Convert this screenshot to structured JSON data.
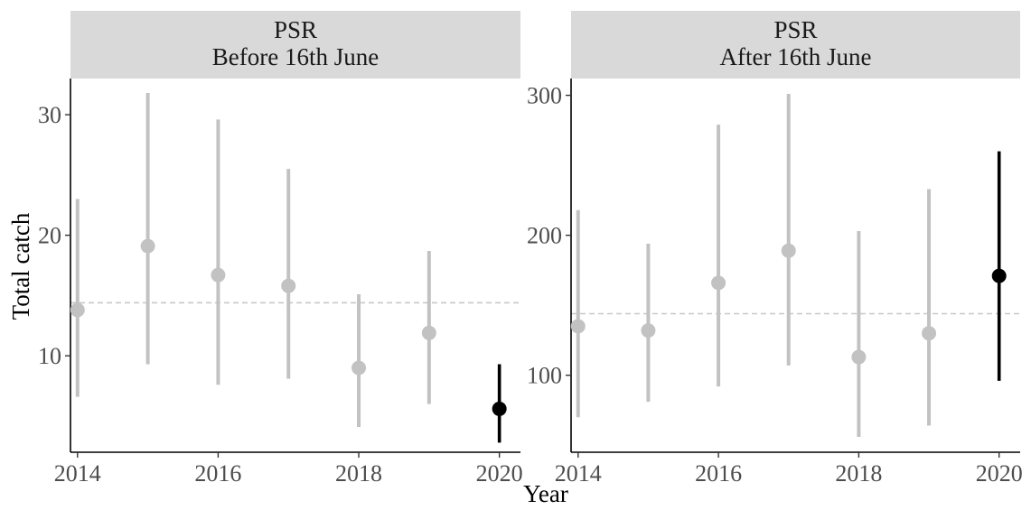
{
  "figure": {
    "ylabel": "Total catch",
    "xlabel": "Year"
  },
  "colors": {
    "past": "#c2c2c2",
    "current": "#000000",
    "strip": "#d9d9d9",
    "reference_line": "#c8c8c8"
  },
  "chart_data": [
    {
      "type": "scatter",
      "panel_title": [
        "PSR",
        "Before 16th June"
      ],
      "ylabel": "Total catch",
      "xlabel": "Year",
      "xlim": [
        2013.9,
        2020.3
      ],
      "ylim": [
        2,
        33
      ],
      "xticks": [
        2014,
        2016,
        2018,
        2020
      ],
      "yticks": [
        10,
        20,
        30
      ],
      "reference_line": 14.4,
      "grid": false,
      "points": [
        {
          "x": 2014,
          "y": 13.8,
          "low": 6.6,
          "high": 23.0,
          "highlight": false
        },
        {
          "x": 2015,
          "y": 19.1,
          "low": 9.3,
          "high": 31.8,
          "highlight": false
        },
        {
          "x": 2016,
          "y": 16.7,
          "low": 7.6,
          "high": 29.6,
          "highlight": false
        },
        {
          "x": 2017,
          "y": 15.8,
          "low": 8.1,
          "high": 25.5,
          "highlight": false
        },
        {
          "x": 2018,
          "y": 9.0,
          "low": 4.1,
          "high": 15.1,
          "highlight": false
        },
        {
          "x": 2019,
          "y": 11.9,
          "low": 6.0,
          "high": 18.7,
          "highlight": false
        },
        {
          "x": 2020,
          "y": 5.6,
          "low": 2.8,
          "high": 9.3,
          "highlight": true
        }
      ]
    },
    {
      "type": "scatter",
      "panel_title": [
        "PSR",
        "After 16th June"
      ],
      "ylabel": "Total catch",
      "xlabel": "Year",
      "xlim": [
        2013.9,
        2020.3
      ],
      "ylim": [
        45,
        312
      ],
      "xticks": [
        2014,
        2016,
        2018,
        2020
      ],
      "yticks": [
        100,
        200,
        300
      ],
      "reference_line": 144,
      "grid": false,
      "points": [
        {
          "x": 2014,
          "y": 135,
          "low": 70,
          "high": 218,
          "highlight": false
        },
        {
          "x": 2015,
          "y": 132,
          "low": 81,
          "high": 194,
          "highlight": false
        },
        {
          "x": 2016,
          "y": 166,
          "low": 92,
          "high": 279,
          "highlight": false
        },
        {
          "x": 2017,
          "y": 189,
          "low": 107,
          "high": 301,
          "highlight": false
        },
        {
          "x": 2018,
          "y": 113,
          "low": 56,
          "high": 203,
          "highlight": false
        },
        {
          "x": 2019,
          "y": 130,
          "low": 64,
          "high": 233,
          "highlight": false
        },
        {
          "x": 2020,
          "y": 171,
          "low": 96,
          "high": 260,
          "highlight": true
        }
      ]
    }
  ]
}
